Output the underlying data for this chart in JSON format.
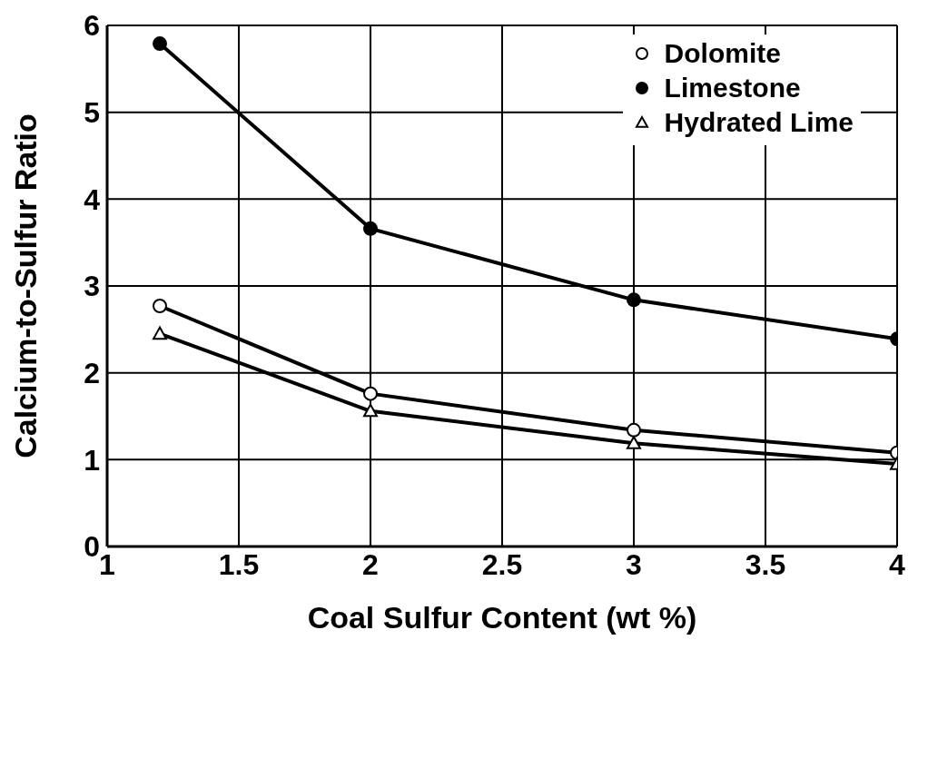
{
  "chart_data": {
    "type": "line",
    "xlabel": "Coal Sulfur Content (wt %)",
    "ylabel": "Calcium-to-Sulfur Ratio",
    "xlim": [
      1,
      4
    ],
    "xticks": [
      1,
      1.5,
      2,
      2.5,
      3,
      3.5,
      4
    ],
    "ylim": [
      0,
      6
    ],
    "yticks": [
      0,
      1,
      2,
      3,
      4,
      5,
      6
    ],
    "grid": true,
    "legend": "top right",
    "line_style": "solid",
    "series": [
      {
        "name": "Dolomite",
        "color": "#000000",
        "marker": "circle",
        "x": [
          1.2,
          2,
          3,
          4
        ],
        "values": [
          2.77,
          1.76,
          1.34,
          1.08
        ]
      },
      {
        "name": "Limestone",
        "color": "#000000",
        "marker": "circle",
        "x": [
          1.2,
          2,
          3,
          4
        ],
        "values": [
          5.79,
          3.66,
          2.84,
          2.39
        ]
      },
      {
        "name": "Hydrated Lime",
        "color": "#000000",
        "marker": "triangle",
        "x": [
          1.2,
          2,
          3,
          4
        ],
        "values": [
          2.45,
          1.56,
          1.19,
          0.95
        ]
      }
    ]
  }
}
